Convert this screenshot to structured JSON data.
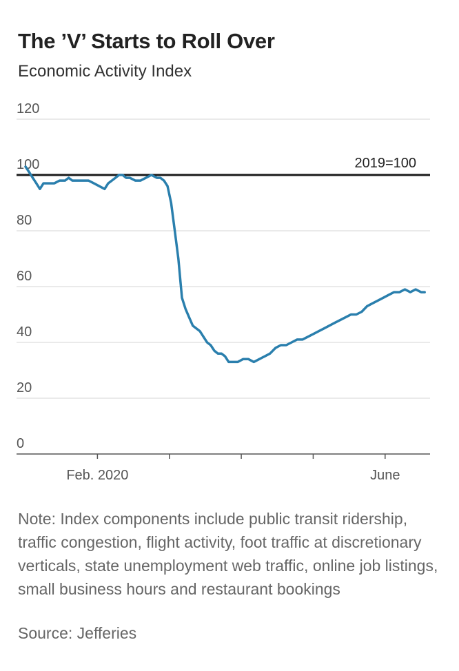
{
  "header": {
    "title": "The ’V’ Starts to Roll Over",
    "subtitle": "Economic Activity Index"
  },
  "footer": {
    "note": "Note: Index components include public transit ridership, traffic congestion, flight activity, foot traffic at discretionary verticals, state unemployment web traffic, online job listings, small business hours and restaurant bookings",
    "source": "Source: Jefferies"
  },
  "chart_data": {
    "type": "line",
    "title": "The ’V’ Starts to Roll Over",
    "subtitle": "Economic Activity Index",
    "xlabel": "",
    "ylabel": "",
    "ylim": [
      0,
      120
    ],
    "yticks": [
      0,
      20,
      40,
      60,
      80,
      100,
      120
    ],
    "xlim": [
      0,
      23
    ],
    "x_tick_positions": [
      4.5,
      8.5,
      12.5,
      16.5,
      20.5
    ],
    "x_tick_labels": [
      {
        "x": 4.5,
        "label": "Feb. 2020"
      },
      {
        "x": 20.5,
        "label": "June"
      }
    ],
    "grid": true,
    "reference_line": {
      "value": 100,
      "label": "2019=100"
    },
    "line_color": "#2a7fad",
    "series": [
      {
        "name": "",
        "x": [
          0.5,
          0.7,
          0.9,
          1.0,
          1.1,
          1.3,
          1.5,
          1.8,
          2.1,
          2.4,
          2.7,
          2.9,
          3.1,
          3.4,
          3.7,
          4.0,
          4.3,
          4.6,
          4.9,
          5.1,
          5.3,
          5.5,
          5.7,
          5.9,
          6.1,
          6.3,
          6.6,
          6.9,
          7.2,
          7.5,
          7.8,
          8.0,
          8.2,
          8.4,
          8.6,
          8.8,
          9.0,
          9.2,
          9.4,
          9.6,
          9.8,
          10.0,
          10.2,
          10.4,
          10.6,
          10.8,
          11.0,
          11.2,
          11.4,
          11.6,
          11.8,
          12.0,
          12.3,
          12.6,
          12.9,
          13.2,
          13.5,
          13.8,
          14.1,
          14.4,
          14.7,
          15.0,
          15.3,
          15.6,
          15.9,
          16.2,
          16.5,
          16.8,
          17.1,
          17.4,
          17.7,
          18.0,
          18.3,
          18.6,
          18.9,
          19.2,
          19.5,
          19.8,
          20.1,
          20.4,
          20.7,
          21.0,
          21.3,
          21.6,
          21.9,
          22.2,
          22.5,
          22.7
        ],
        "values": [
          103,
          101,
          99,
          98,
          97,
          95,
          97,
          97,
          97,
          98,
          98,
          99,
          98,
          98,
          98,
          98,
          97,
          96,
          95,
          97,
          98,
          99,
          100,
          100,
          99,
          99,
          98,
          98,
          99,
          100,
          99,
          99,
          98,
          96,
          90,
          80,
          70,
          56,
          52,
          49,
          46,
          45,
          44,
          42,
          40,
          39,
          37,
          36,
          36,
          35,
          33,
          33,
          33,
          34,
          34,
          33,
          34,
          35,
          36,
          38,
          39,
          39,
          40,
          41,
          41,
          42,
          43,
          44,
          45,
          46,
          47,
          48,
          49,
          50,
          50,
          51,
          53,
          54,
          55,
          56,
          57,
          58,
          58,
          59,
          58,
          59,
          58,
          58
        ]
      }
    ]
  }
}
